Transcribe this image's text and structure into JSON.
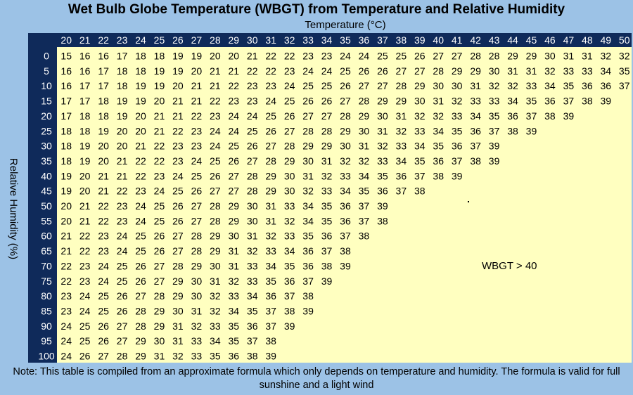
{
  "colors": {
    "background": "#9cc2e6",
    "header": "#0f2a5a",
    "header_text": "#ffffff",
    "cells": "#ffffc0",
    "cell_text": "#000000"
  },
  "chart_data": {
    "type": "table",
    "title": "Wet Bulb Globe Temperature (WBGT) from Temperature and Relative Humidity",
    "xlabel": "Temperature (°C)",
    "ylabel": "Relative Humidity (%)",
    "columns": [
      20,
      21,
      22,
      23,
      24,
      25,
      26,
      27,
      28,
      29,
      30,
      31,
      32,
      33,
      34,
      35,
      36,
      37,
      38,
      39,
      40,
      41,
      42,
      43,
      44,
      45,
      46,
      47,
      48,
      49,
      50
    ],
    "rows": [
      0,
      5,
      10,
      15,
      20,
      25,
      30,
      35,
      40,
      45,
      50,
      55,
      60,
      65,
      70,
      75,
      80,
      85,
      90,
      95,
      100
    ],
    "values": [
      [
        15,
        16,
        16,
        17,
        18,
        18,
        19,
        19,
        20,
        20,
        21,
        22,
        22,
        23,
        23,
        24,
        24,
        25,
        25,
        26,
        27,
        27,
        28,
        28,
        29,
        29,
        30,
        31,
        31,
        32,
        32
      ],
      [
        16,
        16,
        17,
        18,
        18,
        19,
        19,
        20,
        21,
        21,
        22,
        22,
        23,
        24,
        24,
        25,
        26,
        26,
        27,
        27,
        28,
        29,
        29,
        30,
        31,
        31,
        32,
        33,
        33,
        34,
        35
      ],
      [
        16,
        17,
        17,
        18,
        19,
        19,
        20,
        21,
        21,
        22,
        23,
        23,
        24,
        25,
        25,
        26,
        27,
        27,
        28,
        29,
        30,
        30,
        31,
        32,
        32,
        33,
        34,
        35,
        36,
        36,
        37
      ],
      [
        17,
        17,
        18,
        19,
        19,
        20,
        21,
        21,
        22,
        23,
        23,
        24,
        25,
        26,
        26,
        27,
        28,
        29,
        29,
        30,
        31,
        32,
        33,
        33,
        34,
        35,
        36,
        37,
        38,
        39
      ],
      [
        17,
        18,
        18,
        19,
        20,
        21,
        21,
        22,
        23,
        24,
        24,
        25,
        26,
        27,
        27,
        28,
        29,
        30,
        31,
        32,
        32,
        33,
        34,
        35,
        36,
        37,
        38,
        39
      ],
      [
        18,
        18,
        19,
        20,
        20,
        21,
        22,
        23,
        24,
        24,
        25,
        26,
        27,
        28,
        28,
        29,
        30,
        31,
        32,
        33,
        34,
        35,
        36,
        37,
        38,
        39
      ],
      [
        18,
        19,
        20,
        20,
        21,
        22,
        23,
        23,
        24,
        25,
        26,
        27,
        28,
        29,
        29,
        30,
        31,
        32,
        33,
        34,
        35,
        36,
        37,
        39
      ],
      [
        18,
        19,
        20,
        21,
        22,
        22,
        23,
        24,
        25,
        26,
        27,
        28,
        29,
        30,
        31,
        32,
        32,
        33,
        34,
        35,
        36,
        37,
        38,
        39
      ],
      [
        19,
        20,
        21,
        21,
        22,
        23,
        24,
        25,
        26,
        27,
        28,
        29,
        30,
        31,
        32,
        33,
        34,
        35,
        36,
        37,
        38,
        39
      ],
      [
        19,
        20,
        21,
        22,
        23,
        24,
        25,
        26,
        27,
        27,
        28,
        29,
        30,
        32,
        33,
        34,
        35,
        36,
        37,
        38
      ],
      [
        20,
        21,
        22,
        23,
        24,
        25,
        26,
        27,
        28,
        29,
        30,
        31,
        33,
        34,
        35,
        36,
        37,
        39
      ],
      [
        20,
        21,
        22,
        23,
        24,
        25,
        26,
        27,
        28,
        29,
        30,
        31,
        32,
        34,
        35,
        36,
        37,
        38
      ],
      [
        21,
        22,
        23,
        24,
        25,
        26,
        27,
        28,
        29,
        30,
        31,
        32,
        33,
        35,
        36,
        37,
        38
      ],
      [
        21,
        22,
        23,
        24,
        25,
        26,
        27,
        28,
        29,
        31,
        32,
        33,
        34,
        36,
        37,
        38
      ],
      [
        22,
        23,
        24,
        25,
        26,
        27,
        28,
        29,
        30,
        31,
        33,
        34,
        35,
        36,
        38,
        39
      ],
      [
        22,
        23,
        24,
        25,
        26,
        27,
        29,
        30,
        31,
        32,
        33,
        35,
        36,
        37,
        39
      ],
      [
        23,
        24,
        25,
        26,
        27,
        28,
        29,
        30,
        32,
        33,
        34,
        36,
        37,
        38
      ],
      [
        23,
        24,
        25,
        26,
        28,
        29,
        30,
        31,
        32,
        34,
        35,
        37,
        38,
        39
      ],
      [
        24,
        25,
        26,
        27,
        28,
        29,
        31,
        32,
        33,
        35,
        36,
        37,
        39
      ],
      [
        24,
        25,
        26,
        27,
        29,
        30,
        31,
        33,
        34,
        35,
        37,
        38
      ],
      [
        24,
        26,
        27,
        28,
        29,
        31,
        32,
        33,
        35,
        36,
        38,
        39
      ]
    ],
    "annotation": "WBGT > 40",
    "note": "Note: This table is compiled from an approximate formula which only depends on temperature and humidity. The formula is valid for full sunshine and a light wind"
  }
}
